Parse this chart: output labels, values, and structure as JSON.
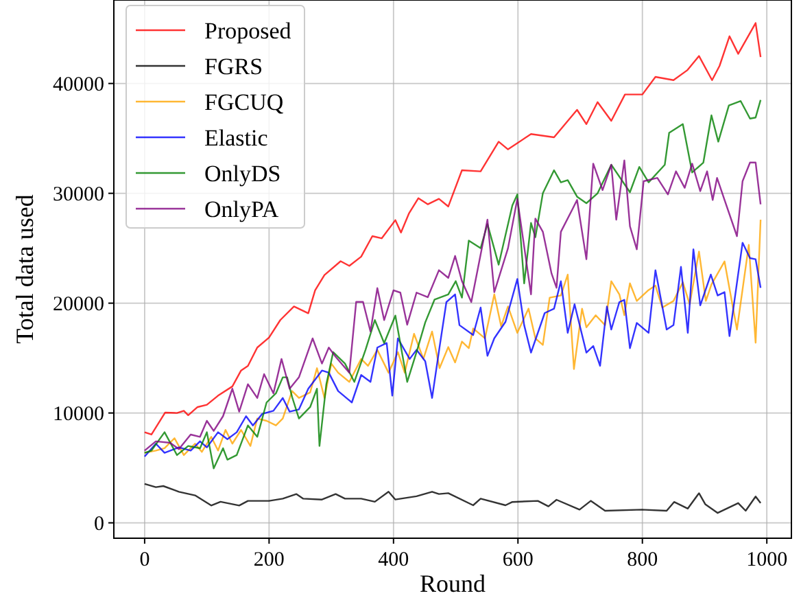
{
  "chart_data": {
    "type": "line",
    "xlabel": "Round",
    "ylabel": "Total data used",
    "xlim": [
      -49.5,
      1039.5
    ],
    "ylim": [
      -1400,
      47600
    ],
    "xticks": [
      0,
      200,
      400,
      600,
      800,
      1000
    ],
    "yticks": [
      0,
      10000,
      20000,
      30000,
      40000
    ],
    "grid": true,
    "legend": "top left",
    "series": [
      {
        "name": "Proposed",
        "color": "#ff0000",
        "x": [
          0,
          11,
          33,
          52,
          63,
          70,
          85,
          100,
          118,
          141,
          155,
          166,
          181,
          200,
          218,
          240,
          263,
          274,
          289,
          315,
          329,
          348,
          366,
          381,
          403,
          412,
          425,
          440,
          455,
          473,
          488,
          510,
          540,
          569,
          584,
          621,
          658,
          695,
          710,
          728,
          750,
          772,
          800,
          821,
          850,
          872,
          891,
          912,
          924,
          940,
          954,
          982,
          990
        ],
        "values": [
          8250,
          8040,
          10040,
          10000,
          10200,
          9800,
          10540,
          10750,
          11580,
          12420,
          13870,
          14290,
          15960,
          16870,
          18460,
          19700,
          19080,
          21170,
          22560,
          23820,
          23400,
          24230,
          26100,
          25900,
          27560,
          26430,
          28190,
          29560,
          29000,
          29500,
          28800,
          32100,
          32000,
          34700,
          34000,
          35400,
          35100,
          37600,
          36300,
          38300,
          36600,
          39000,
          39000,
          40600,
          40300,
          41200,
          42500,
          40300,
          41600,
          44300,
          42700,
          45500,
          42400
        ]
      },
      {
        "name": "FGRS",
        "color": "#000000",
        "x": [
          0,
          18,
          30,
          55,
          81,
          107,
          122,
          152,
          166,
          200,
          222,
          244,
          255,
          285,
          307,
          322,
          348,
          370,
          392,
          403,
          437,
          462,
          473,
          488,
          528,
          540,
          580,
          591,
          632,
          649,
          662,
          699,
          717,
          740,
          799,
          839,
          851,
          873,
          891,
          901,
          921,
          932,
          954,
          966,
          982,
          990
        ],
        "values": [
          3550,
          3250,
          3350,
          2830,
          2500,
          1580,
          1920,
          1580,
          2000,
          2000,
          2200,
          2620,
          2200,
          2120,
          2620,
          2200,
          2200,
          1920,
          2830,
          2120,
          2420,
          2830,
          2625,
          2700,
          1600,
          2200,
          1600,
          1900,
          2000,
          1500,
          2100,
          1200,
          2000,
          1100,
          1200,
          1100,
          1900,
          1300,
          2700,
          1700,
          900,
          1200,
          1800,
          1100,
          2400,
          1800
        ]
      },
      {
        "name": "FGCUQ",
        "color": "#ffa500",
        "x": [
          0,
          18,
          32,
          48,
          63,
          81,
          92,
          107,
          118,
          130,
          141,
          155,
          170,
          181,
          196,
          211,
          222,
          237,
          248,
          266,
          277,
          289,
          300,
          311,
          329,
          348,
          359,
          374,
          392,
          407,
          418,
          433,
          448,
          462,
          474,
          488,
          499,
          510,
          521,
          528,
          547,
          562,
          573,
          584,
          599,
          617,
          628,
          640,
          651,
          669,
          680,
          690,
          703,
          710,
          725,
          740,
          750,
          763,
          771,
          780,
          791,
          810,
          821,
          832,
          850,
          865,
          876,
          891,
          902,
          911,
          932,
          952,
          971,
          982,
          990
        ],
        "values": [
          6375,
          6580,
          6790,
          7710,
          6170,
          7210,
          6460,
          7830,
          6580,
          8460,
          7210,
          8460,
          7000,
          9500,
          9290,
          8870,
          9500,
          12000,
          11370,
          11870,
          14080,
          11370,
          14500,
          13670,
          12830,
          14920,
          14290,
          15750,
          13670,
          15540,
          13670,
          17210,
          14920,
          17420,
          14080,
          16000,
          14600,
          16500,
          15900,
          17700,
          16800,
          20800,
          17900,
          19700,
          17300,
          19500,
          16800,
          16200,
          20500,
          20700,
          22600,
          14000,
          19500,
          17800,
          18900,
          18000,
          22000,
          20800,
          18900,
          21800,
          20200,
          21200,
          21600,
          19600,
          20200,
          21900,
          19900,
          24700,
          20200,
          21700,
          23800,
          17600,
          25300,
          16400,
          27600
        ]
      },
      {
        "name": "Elastic",
        "color": "#0000ff",
        "x": [
          0,
          18,
          32,
          55,
          74,
          89,
          100,
          118,
          133,
          148,
          163,
          174,
          189,
          207,
          222,
          233,
          248,
          263,
          285,
          296,
          311,
          333,
          348,
          363,
          374,
          389,
          398,
          407,
          426,
          437,
          451,
          462,
          474,
          485,
          499,
          506,
          528,
          540,
          551,
          562,
          580,
          599,
          610,
          621,
          643,
          658,
          669,
          680,
          691,
          710,
          721,
          732,
          743,
          750,
          763,
          771,
          780,
          791,
          810,
          821,
          839,
          850,
          862,
          873,
          882,
          893,
          910,
          921,
          932,
          940,
          961,
          973,
          982,
          990
        ],
        "values": [
          6040,
          7210,
          6375,
          6870,
          6580,
          7420,
          6870,
          8250,
          7620,
          8250,
          9710,
          8870,
          9920,
          10200,
          11370,
          10125,
          10330,
          12210,
          13870,
          13670,
          12000,
          10960,
          13460,
          12830,
          15960,
          16370,
          11580,
          16790,
          14920,
          15750,
          14710,
          11370,
          16000,
          20100,
          20800,
          18000,
          17100,
          19600,
          15200,
          16800,
          18300,
          22200,
          18000,
          15500,
          19100,
          19500,
          22000,
          17300,
          19900,
          15500,
          16100,
          14300,
          19700,
          17600,
          20100,
          20300,
          15900,
          18200,
          17300,
          23000,
          17600,
          18000,
          23300,
          17300,
          24900,
          19800,
          22600,
          20700,
          21000,
          17000,
          25500,
          24100,
          24000,
          21400
        ]
      },
      {
        "name": "OnlyDS",
        "color": "#008000",
        "x": [
          0,
          11,
          32,
          52,
          70,
          89,
          100,
          111,
          126,
          133,
          148,
          166,
          181,
          196,
          211,
          222,
          229,
          237,
          248,
          266,
          277,
          281,
          292,
          303,
          322,
          337,
          355,
          370,
          385,
          403,
          422,
          437,
          451,
          466,
          488,
          500,
          510,
          521,
          540,
          551,
          569,
          591,
          599,
          610,
          621,
          628,
          640,
          658,
          669,
          680,
          695,
          710,
          728,
          750,
          780,
          795,
          810,
          836,
          843,
          865,
          880,
          898,
          911,
          922,
          939,
          958,
          973,
          982,
          990
        ],
        "values": [
          6375,
          6580,
          8250,
          6170,
          7000,
          6790,
          8250,
          4960,
          6790,
          5750,
          6170,
          8870,
          7830,
          10960,
          11790,
          13250,
          13250,
          11460,
          9500,
          10540,
          12210,
          7000,
          12620,
          15540,
          14500,
          12830,
          15750,
          18460,
          16370,
          18870,
          12830,
          15540,
          18250,
          20330,
          20800,
          22000,
          20500,
          25700,
          25000,
          27200,
          23500,
          28900,
          29900,
          21800,
          27300,
          26000,
          30000,
          32100,
          31000,
          31200,
          29700,
          29100,
          30000,
          32600,
          30100,
          32400,
          31000,
          32600,
          35500,
          36300,
          31900,
          32800,
          37100,
          34700,
          38000,
          38400,
          36800,
          36900,
          38500
        ]
      },
      {
        "name": "OnlyPA",
        "color": "#800080",
        "x": [
          0,
          18,
          41,
          55,
          74,
          89,
          100,
          111,
          126,
          141,
          152,
          166,
          181,
          192,
          207,
          220,
          233,
          248,
          270,
          285,
          296,
          307,
          329,
          340,
          351,
          363,
          374,
          385,
          400,
          411,
          422,
          437,
          455,
          473,
          488,
          499,
          510,
          525,
          551,
          562,
          584,
          599,
          621,
          628,
          640,
          654,
          662,
          669,
          688,
          695,
          710,
          721,
          736,
          750,
          758,
          771,
          780,
          791,
          802,
          824,
          841,
          854,
          868,
          880,
          893,
          904,
          913,
          920,
          932,
          952,
          961,
          973,
          982,
          990
        ],
        "values": [
          6580,
          7420,
          7290,
          6710,
          8040,
          7830,
          9290,
          8370,
          9710,
          12210,
          10125,
          12620,
          11370,
          13540,
          11790,
          14920,
          12210,
          13250,
          16790,
          14500,
          15960,
          15120,
          13670,
          20120,
          20120,
          17420,
          21370,
          18460,
          21170,
          20960,
          18040,
          20960,
          20540,
          23000,
          22300,
          24300,
          22000,
          20100,
          27600,
          21000,
          25000,
          29500,
          20800,
          27700,
          26500,
          22700,
          21400,
          26500,
          28600,
          29400,
          24000,
          32700,
          30300,
          32600,
          27600,
          33000,
          27000,
          24900,
          31100,
          31400,
          29900,
          32000,
          30500,
          32700,
          30200,
          32000,
          29400,
          31400,
          29400,
          26100,
          31100,
          32800,
          32800,
          29000
        ]
      }
    ]
  }
}
